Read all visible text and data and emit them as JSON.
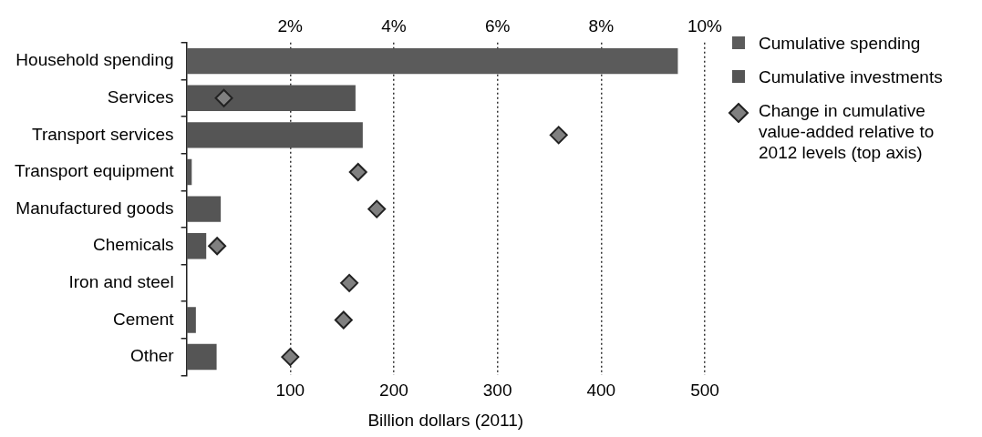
{
  "chart_data": {
    "type": "bar",
    "orientation": "horizontal",
    "xlabel": "Billion dollars (2011)",
    "categories": [
      "Household spending",
      "Services",
      "Transport services",
      "Transport equipment",
      "Manufactured goods",
      "Chemicals",
      "Iron and steel",
      "Cement",
      "Other"
    ],
    "series": [
      {
        "name": "Cumulative spending",
        "color": "#5b5b5b",
        "values": [
          474,
          null,
          null,
          null,
          null,
          null,
          null,
          null,
          null
        ]
      },
      {
        "name": "Cumulative investments",
        "color": "#555555",
        "values": [
          null,
          163,
          170,
          5,
          33,
          19,
          0,
          9,
          29
        ]
      },
      {
        "name": "Change in cumulative value-added relative to 2012 levels (top axis)",
        "type": "scatter",
        "axis": "x2",
        "marker": "diamond",
        "color": "#808080",
        "values": [
          null,
          0.72,
          7.18,
          3.31,
          3.67,
          0.59,
          3.14,
          3.03,
          2.0
        ]
      }
    ],
    "xlim": [
      0,
      500
    ],
    "xticks": [
      100,
      200,
      300,
      400,
      500
    ],
    "x2lim": [
      0,
      10
    ],
    "x2ticks": [
      {
        "value": 2,
        "label": "2%"
      },
      {
        "value": 4,
        "label": "4%"
      },
      {
        "value": 6,
        "label": "6%"
      },
      {
        "value": 8,
        "label": "8%"
      },
      {
        "value": 10,
        "label": "10%"
      }
    ],
    "grid": "x",
    "legend": "right"
  }
}
